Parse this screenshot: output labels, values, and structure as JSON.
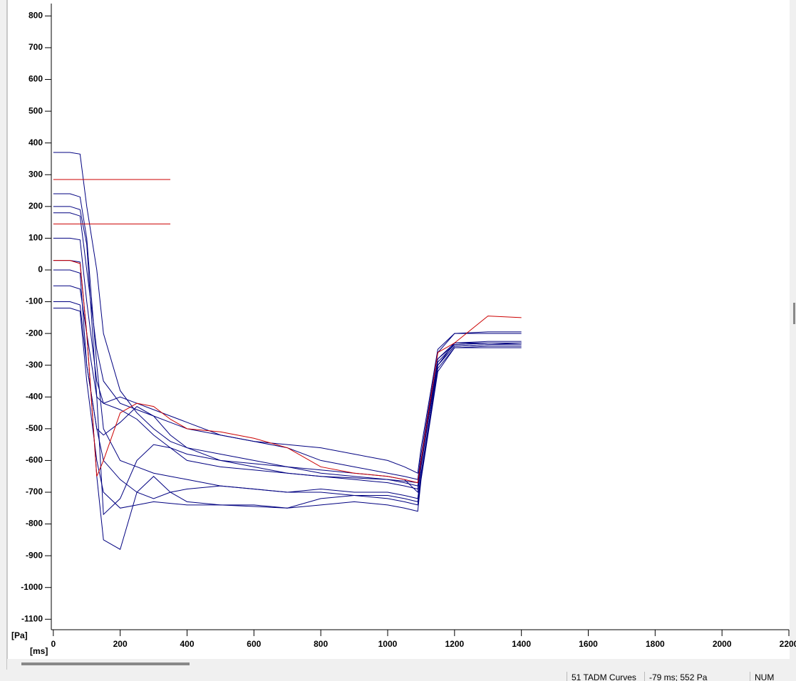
{
  "chart_data": {
    "type": "line",
    "y_unit_label": "[Pa]",
    "x_unit_label": "[ms]",
    "x": [
      0,
      50,
      80,
      100,
      130,
      150,
      200,
      250,
      300,
      350,
      400,
      500,
      600,
      700,
      800,
      900,
      1000,
      1050,
      1090,
      1100,
      1150,
      1200,
      1300,
      1400
    ],
    "series": [
      {
        "color": "#000080",
        "values": [
          370,
          370,
          365,
          200,
          0,
          -200,
          -380,
          -450,
          -500,
          -540,
          -560,
          -600,
          -620,
          -640,
          -650,
          -660,
          -670,
          -680,
          -690,
          -600,
          -300,
          -230,
          -225,
          -225
        ]
      },
      {
        "color": "#000080",
        "values": [
          240,
          240,
          230,
          100,
          -300,
          -500,
          -600,
          -620,
          -640,
          -650,
          -660,
          -680,
          -690,
          -700,
          -700,
          -710,
          -720,
          -730,
          -740,
          -650,
          -300,
          -240,
          -235,
          -230
        ]
      },
      {
        "color": "#000080",
        "values": [
          200,
          200,
          190,
          80,
          -400,
          -770,
          -720,
          -600,
          -550,
          -560,
          -580,
          -600,
          -610,
          -620,
          -630,
          -640,
          -650,
          -660,
          -700,
          -620,
          -280,
          -235,
          -230,
          -230
        ]
      },
      {
        "color": "#000080",
        "values": [
          30,
          30,
          25,
          -200,
          -650,
          -850,
          -880,
          -700,
          -650,
          -700,
          -730,
          -740,
          -740,
          -750,
          -740,
          -730,
          -740,
          -750,
          -760,
          -660,
          -320,
          -245,
          -240,
          -240
        ]
      },
      {
        "color": "#000080",
        "values": [
          0,
          0,
          -10,
          -300,
          -500,
          -600,
          -660,
          -700,
          -720,
          -700,
          -690,
          -680,
          -690,
          -700,
          -690,
          -700,
          -700,
          -710,
          -720,
          -640,
          -300,
          -240,
          -235,
          -235
        ]
      },
      {
        "color": "#000080",
        "values": [
          -50,
          -50,
          -60,
          -200,
          -400,
          -420,
          -440,
          -470,
          -520,
          -560,
          -600,
          -620,
          -630,
          -640,
          -650,
          -655,
          -660,
          -665,
          -670,
          -600,
          -280,
          -230,
          -230,
          -230
        ]
      },
      {
        "color": "#000080",
        "values": [
          -100,
          -100,
          -110,
          -300,
          -500,
          -520,
          -480,
          -430,
          -460,
          -520,
          -560,
          -580,
          -600,
          -620,
          -640,
          -650,
          -660,
          -670,
          -680,
          -610,
          -290,
          -235,
          -230,
          -230
        ]
      },
      {
        "color": "#000080",
        "values": [
          100,
          100,
          95,
          -100,
          -350,
          -420,
          -400,
          -420,
          -440,
          -460,
          -480,
          -520,
          -540,
          -560,
          -600,
          -620,
          -640,
          -650,
          -660,
          -580,
          -260,
          -200,
          -200,
          -200
        ]
      },
      {
        "color": "#000080",
        "values": [
          180,
          180,
          170,
          0,
          -250,
          -350,
          -420,
          -440,
          -460,
          -480,
          -500,
          -520,
          -540,
          -550,
          -560,
          -580,
          -600,
          -620,
          -640,
          -560,
          -250,
          -200,
          -195,
          -195
        ]
      },
      {
        "color": "#000080",
        "values": [
          -120,
          -120,
          -130,
          -350,
          -600,
          -700,
          -750,
          -740,
          -730,
          -735,
          -740,
          -740,
          -745,
          -750,
          -720,
          -710,
          -710,
          -720,
          -730,
          -650,
          -310,
          -245,
          -245,
          -245
        ]
      },
      {
        "color": "#cc0000",
        "values": [
          285,
          285,
          285,
          285,
          285,
          285,
          285,
          285,
          285,
          285,
          null,
          null,
          null,
          null,
          null,
          null,
          null,
          null,
          null,
          null,
          null,
          null,
          null,
          null
        ]
      },
      {
        "color": "#cc0000",
        "values": [
          145,
          145,
          145,
          145,
          145,
          145,
          145,
          145,
          145,
          145,
          null,
          null,
          null,
          null,
          null,
          null,
          null,
          null,
          null,
          null,
          null,
          null,
          null,
          null
        ]
      },
      {
        "color": "#cc0000",
        "values": [
          30,
          30,
          20,
          -200,
          -650,
          -600,
          -450,
          -420,
          -430,
          -470,
          -500,
          -510,
          -530,
          -560,
          -620,
          -640,
          -650,
          -660,
          -670,
          -600,
          -260,
          -230,
          -145,
          -150
        ]
      }
    ],
    "xlim": [
      -6,
      2200
    ],
    "ylim": [
      -1133,
      839
    ],
    "xticks": [
      0,
      200,
      400,
      600,
      800,
      1000,
      1200,
      1400,
      1600,
      1800,
      2000,
      2200
    ],
    "yticks": [
      800,
      700,
      600,
      500,
      400,
      300,
      200,
      100,
      0,
      -100,
      -200,
      -300,
      -400,
      -500,
      -600,
      -700,
      -800,
      -900,
      -1000,
      -1100
    ]
  },
  "status_bar": [
    "51 TADM Curves",
    "-79 ms; 552 Pa",
    "NUM"
  ]
}
